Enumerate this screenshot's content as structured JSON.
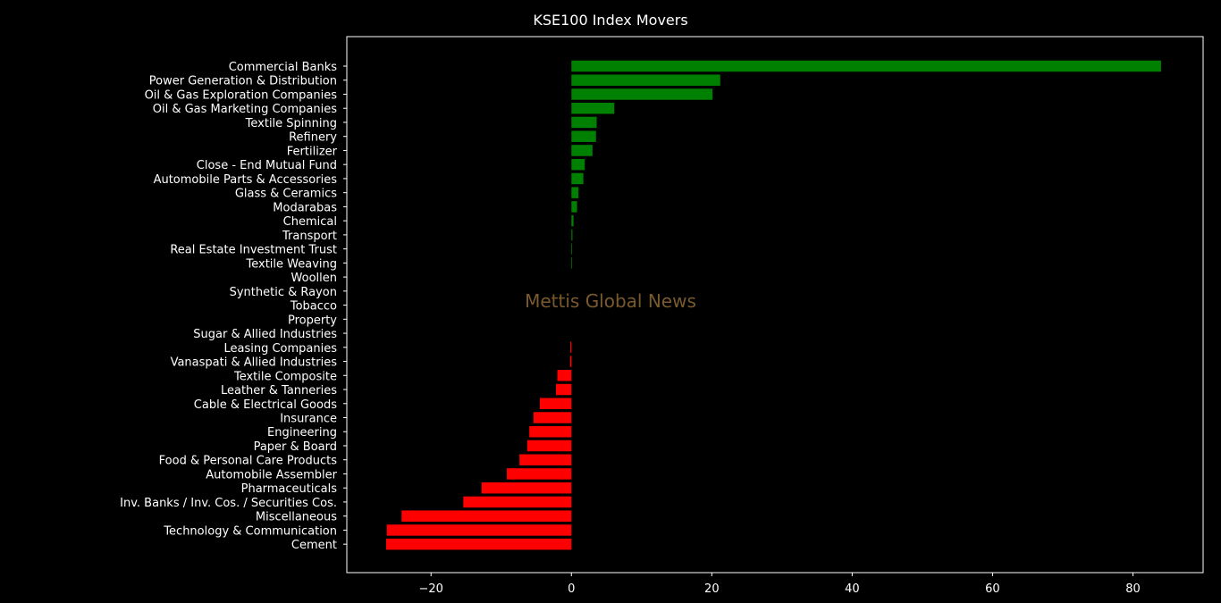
{
  "chart_data": {
    "type": "bar",
    "orientation": "horizontal",
    "title": "KSE100 Index Movers",
    "xlabel": "",
    "ylabel": "",
    "xlim": [
      -32,
      90
    ],
    "xticks": [
      -20,
      0,
      20,
      40,
      60,
      80
    ],
    "xtick_labels": [
      "−20",
      "0",
      "20",
      "40",
      "60",
      "80"
    ],
    "grid": false,
    "positive_color": "#008000",
    "negative_color": "#ff0000",
    "background_color": "#000000",
    "text_color": "#ffffff",
    "watermark": "Mettis Global News",
    "watermark_color": "#7a5a2c",
    "categories": [
      "Commercial Banks",
      "Power Generation & Distribution",
      "Oil & Gas Exploration Companies",
      "Oil & Gas Marketing Companies",
      "Textile Spinning",
      "Refinery",
      "Fertilizer",
      "Close - End Mutual Fund",
      "Automobile Parts & Accessories",
      "Glass & Ceramics",
      "Modarabas",
      "Chemical",
      "Transport",
      "Real Estate Investment Trust",
      "Textile Weaving",
      "Woollen",
      "Synthetic & Rayon",
      "Tobacco",
      "Property",
      "Sugar & Allied Industries",
      "Leasing Companies",
      "Vanaspati & Allied Industries",
      "Textile Composite",
      "Leather & Tanneries",
      "Cable & Electrical Goods",
      "Insurance",
      "Engineering",
      "Paper & Board",
      "Food & Personal Care Products",
      "Automobile Assembler",
      "Pharmaceuticals",
      "Inv. Banks / Inv. Cos. / Securities Cos.",
      "Miscellaneous",
      "Technology & Communication",
      "Cement"
    ],
    "values": [
      84.0,
      21.2,
      20.1,
      6.1,
      3.6,
      3.5,
      3.0,
      1.9,
      1.7,
      1.0,
      0.8,
      0.3,
      0.15,
      0.1,
      0.1,
      0,
      0,
      0,
      0,
      0,
      -0.15,
      -0.2,
      -2.0,
      -2.2,
      -4.5,
      -5.4,
      -6.0,
      -6.3,
      -7.4,
      -9.2,
      -12.8,
      -15.4,
      -24.2,
      -26.3,
      -26.4
    ]
  }
}
